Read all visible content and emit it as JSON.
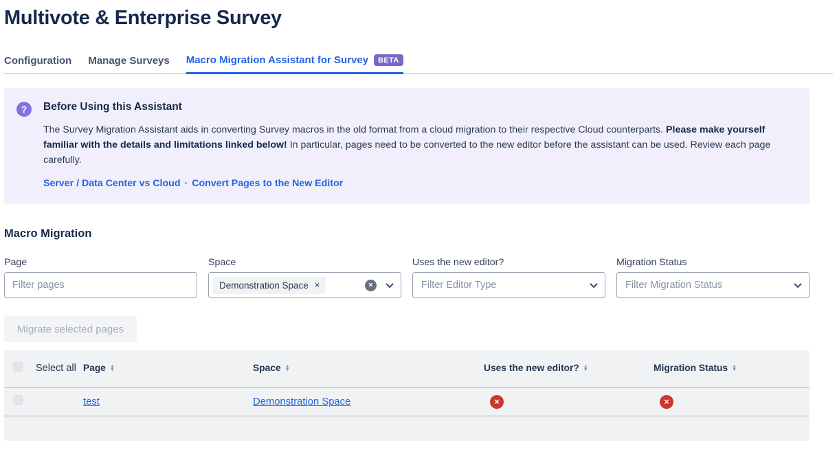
{
  "page": {
    "title": "Multivote & Enterprise Survey"
  },
  "tabs": [
    {
      "label": "Configuration",
      "active": false
    },
    {
      "label": "Manage Surveys",
      "active": false
    },
    {
      "label": "Macro Migration Assistant for Survey",
      "active": true,
      "badge": "BETA"
    }
  ],
  "info_panel": {
    "icon": "question-mark",
    "title": "Before Using this Assistant",
    "body_1": "The Survey Migration Assistant aids in converting Survey macros in the old format from a cloud migration to their respective Cloud counterparts. ",
    "body_bold": "Please make yourself familiar with the details and limitations linked below!",
    "body_2": " In particular, pages need to be converted to the new editor before the assistant can be used. Review each page carefully.",
    "links": [
      {
        "label": "Server / Data Center vs Cloud"
      },
      {
        "label": "Convert Pages to the New Editor"
      }
    ],
    "link_separator": "·"
  },
  "section_title": "Macro Migration",
  "filters": {
    "page": {
      "label": "Page",
      "placeholder": "Filter pages",
      "value": ""
    },
    "space": {
      "label": "Space",
      "selected_tag": "Demonstration Space"
    },
    "editor": {
      "label": "Uses the new editor?",
      "placeholder": "Filter Editor Type"
    },
    "status": {
      "label": "Migration Status",
      "placeholder": "Filter Migration Status"
    }
  },
  "migrate_button": {
    "label": "Migrate selected pages",
    "enabled": false
  },
  "table": {
    "select_all_label": "Select all",
    "columns": [
      {
        "label": "Page"
      },
      {
        "label": "Space"
      },
      {
        "label": "Uses the new editor?"
      },
      {
        "label": "Migration Status"
      }
    ],
    "rows": [
      {
        "page": "test",
        "space": "Demonstration Space",
        "uses_new_editor": "no",
        "migration_status": "not migrated"
      }
    ]
  },
  "icons": {
    "question": "?",
    "cross": "×",
    "sort_up": "▲",
    "sort_down": "▼"
  },
  "colors": {
    "heading": "#15294B",
    "accent_blue": "#2263E7",
    "badge_purple": "#7868C8",
    "panel_bg": "#F1EFFB",
    "icon_purple": "#8373DB",
    "error_red": "#C9382A",
    "table_bg": "#F1F2F4"
  }
}
